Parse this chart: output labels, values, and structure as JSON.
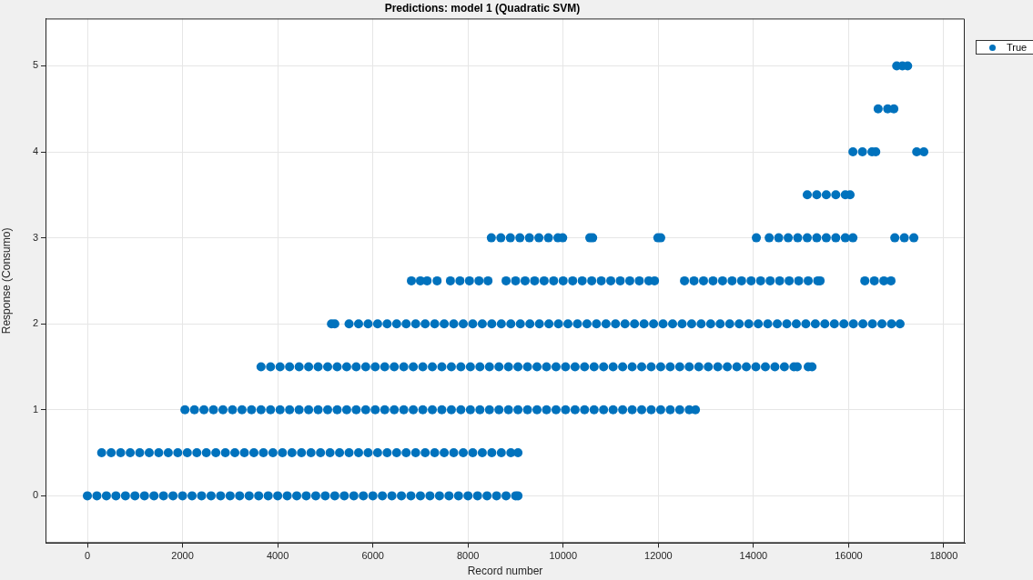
{
  "chart_data": {
    "type": "scatter",
    "title": "Predictions: model 1 (Quadratic SVM)",
    "xlabel": "Record number",
    "ylabel": "Response (Consumo)",
    "xlim": [
      -880,
      18440
    ],
    "ylim": [
      -0.55,
      5.55
    ],
    "xticks": [
      0,
      2000,
      4000,
      6000,
      8000,
      10000,
      12000,
      14000,
      16000,
      18000
    ],
    "yticks": [
      0,
      1,
      2,
      3,
      4,
      5
    ],
    "grid": true,
    "legend": "top right",
    "marker": "circle",
    "series": [
      {
        "name": "True",
        "color": "#0072bd",
        "x": [
          0,
          200,
          400,
          600,
          800,
          1000,
          1200,
          1400,
          1600,
          1800,
          2000,
          2200,
          2400,
          2600,
          2800,
          3000,
          3200,
          3400,
          3600,
          3800,
          4000,
          4200,
          4400,
          4600,
          4800,
          5000,
          5200,
          5400,
          5600,
          5800,
          6000,
          6200,
          6400,
          6600,
          6800,
          7000,
          7200,
          7400,
          7600,
          7800,
          8000,
          8200,
          8400,
          8600,
          8800,
          9000,
          9050,
          300,
          500,
          700,
          900,
          1100,
          1300,
          1500,
          1700,
          1900,
          2100,
          2300,
          2500,
          2700,
          2900,
          3100,
          3300,
          3500,
          3700,
          3900,
          4100,
          4300,
          4500,
          4700,
          4900,
          5100,
          5300,
          5500,
          5700,
          5900,
          6100,
          6300,
          6500,
          6700,
          6900,
          7100,
          7300,
          7500,
          7700,
          7900,
          8100,
          8300,
          8500,
          8700,
          8900,
          9050,
          2050,
          2250,
          2450,
          2650,
          2850,
          3050,
          3250,
          3450,
          3650,
          3850,
          4050,
          4250,
          4450,
          4650,
          4850,
          5050,
          5250,
          5450,
          5650,
          5850,
          6050,
          6250,
          6450,
          6650,
          6850,
          7050,
          7250,
          7450,
          7650,
          7850,
          8050,
          8250,
          8450,
          8650,
          8850,
          9050,
          9250,
          9450,
          9650,
          9850,
          10050,
          10250,
          10450,
          10650,
          10850,
          11050,
          11250,
          11450,
          11650,
          11850,
          12050,
          12250,
          12450,
          12650,
          12780,
          3650,
          3850,
          4050,
          4250,
          4450,
          4650,
          4850,
          5050,
          5250,
          5450,
          5650,
          5850,
          6050,
          6250,
          6450,
          6650,
          6850,
          7050,
          7250,
          7450,
          7650,
          7850,
          8050,
          8250,
          8450,
          8650,
          8850,
          9050,
          9250,
          9450,
          9650,
          9850,
          10050,
          10250,
          10450,
          10650,
          10850,
          11050,
          11250,
          11450,
          11650,
          11850,
          12050,
          12250,
          12450,
          12650,
          12850,
          13050,
          13250,
          13450,
          13650,
          13850,
          14050,
          14250,
          14450,
          14650,
          14850,
          14920,
          15150,
          15230,
          5130,
          5200,
          5500,
          5700,
          5900,
          6100,
          6300,
          6500,
          6700,
          6900,
          7100,
          7300,
          7500,
          7700,
          7900,
          8100,
          8300,
          8500,
          8700,
          8900,
          9100,
          9300,
          9500,
          9700,
          9900,
          10100,
          10300,
          10500,
          10700,
          10900,
          11100,
          11300,
          11500,
          11700,
          11900,
          12100,
          12300,
          12500,
          12700,
          12900,
          13100,
          13300,
          13500,
          13700,
          13900,
          14100,
          14300,
          14500,
          14700,
          14900,
          15100,
          15300,
          15500,
          15700,
          15900,
          16100,
          16300,
          16500,
          16700,
          16900,
          17080,
          6810,
          7000,
          7140,
          7350,
          7630,
          7830,
          8030,
          8230,
          8420,
          8800,
          9000,
          9200,
          9400,
          9600,
          9800,
          10000,
          10200,
          10400,
          10600,
          10800,
          11000,
          11200,
          11400,
          11600,
          11800,
          11920,
          12550,
          12750,
          12950,
          13150,
          13350,
          13550,
          13750,
          13950,
          14150,
          14350,
          14550,
          14750,
          14950,
          15150,
          15350,
          15400,
          16340,
          16540,
          16740,
          16890,
          8490,
          8690,
          8890,
          9090,
          9290,
          9490,
          9690,
          9890,
          9990,
          10560,
          10620,
          11990,
          12050,
          14060,
          14330,
          14530,
          14730,
          14930,
          15130,
          15330,
          15530,
          15730,
          15930,
          16090,
          16970,
          17170,
          17370,
          15130,
          15330,
          15530,
          15730,
          15930,
          16030,
          16090,
          16290,
          16490,
          16570,
          17430,
          17580,
          16620,
          16820,
          16950,
          17010,
          17130,
          17240
        ],
        "values": [
          0,
          0,
          0,
          0,
          0,
          0,
          0,
          0,
          0,
          0,
          0,
          0,
          0,
          0,
          0,
          0,
          0,
          0,
          0,
          0,
          0,
          0,
          0,
          0,
          0,
          0,
          0,
          0,
          0,
          0,
          0,
          0,
          0,
          0,
          0,
          0,
          0,
          0,
          0,
          0,
          0,
          0,
          0,
          0,
          0,
          0,
          0,
          0.5,
          0.5,
          0.5,
          0.5,
          0.5,
          0.5,
          0.5,
          0.5,
          0.5,
          0.5,
          0.5,
          0.5,
          0.5,
          0.5,
          0.5,
          0.5,
          0.5,
          0.5,
          0.5,
          0.5,
          0.5,
          0.5,
          0.5,
          0.5,
          0.5,
          0.5,
          0.5,
          0.5,
          0.5,
          0.5,
          0.5,
          0.5,
          0.5,
          0.5,
          0.5,
          0.5,
          0.5,
          0.5,
          0.5,
          0.5,
          0.5,
          0.5,
          0.5,
          0.5,
          0.5,
          1,
          1,
          1,
          1,
          1,
          1,
          1,
          1,
          1,
          1,
          1,
          1,
          1,
          1,
          1,
          1,
          1,
          1,
          1,
          1,
          1,
          1,
          1,
          1,
          1,
          1,
          1,
          1,
          1,
          1,
          1,
          1,
          1,
          1,
          1,
          1,
          1,
          1,
          1,
          1,
          1,
          1,
          1,
          1,
          1,
          1,
          1,
          1,
          1,
          1,
          1,
          1,
          1,
          1,
          1,
          1.5,
          1.5,
          1.5,
          1.5,
          1.5,
          1.5,
          1.5,
          1.5,
          1.5,
          1.5,
          1.5,
          1.5,
          1.5,
          1.5,
          1.5,
          1.5,
          1.5,
          1.5,
          1.5,
          1.5,
          1.5,
          1.5,
          1.5,
          1.5,
          1.5,
          1.5,
          1.5,
          1.5,
          1.5,
          1.5,
          1.5,
          1.5,
          1.5,
          1.5,
          1.5,
          1.5,
          1.5,
          1.5,
          1.5,
          1.5,
          1.5,
          1.5,
          1.5,
          1.5,
          1.5,
          1.5,
          1.5,
          1.5,
          1.5,
          1.5,
          1.5,
          1.5,
          1.5,
          1.5,
          1.5,
          1.5,
          1.5,
          1.5,
          1.5,
          1.5,
          2,
          2,
          2,
          2,
          2,
          2,
          2,
          2,
          2,
          2,
          2,
          2,
          2,
          2,
          2,
          2,
          2,
          2,
          2,
          2,
          2,
          2,
          2,
          2,
          2,
          2,
          2,
          2,
          2,
          2,
          2,
          2,
          2,
          2,
          2,
          2,
          2,
          2,
          2,
          2,
          2,
          2,
          2,
          2,
          2,
          2,
          2,
          2,
          2,
          2,
          2,
          2,
          2,
          2,
          2,
          2,
          2,
          2,
          2,
          2,
          2,
          2.5,
          2.5,
          2.5,
          2.5,
          2.5,
          2.5,
          2.5,
          2.5,
          2.5,
          2.5,
          2.5,
          2.5,
          2.5,
          2.5,
          2.5,
          2.5,
          2.5,
          2.5,
          2.5,
          2.5,
          2.5,
          2.5,
          2.5,
          2.5,
          2.5,
          2.5,
          2.5,
          2.5,
          2.5,
          2.5,
          2.5,
          2.5,
          2.5,
          2.5,
          2.5,
          2.5,
          2.5,
          2.5,
          2.5,
          2.5,
          2.5,
          2.5,
          2.5,
          2.5,
          2.5,
          2.5,
          3,
          3,
          3,
          3,
          3,
          3,
          3,
          3,
          3,
          3,
          3,
          3,
          3,
          3,
          3,
          3,
          3,
          3,
          3,
          3,
          3,
          3,
          3,
          3,
          3,
          3,
          3,
          3.5,
          3.5,
          3.5,
          3.5,
          3.5,
          3.5,
          4,
          4,
          4,
          4,
          4,
          4,
          4.5,
          4.5,
          4.5,
          5,
          5,
          5
        ]
      }
    ]
  }
}
